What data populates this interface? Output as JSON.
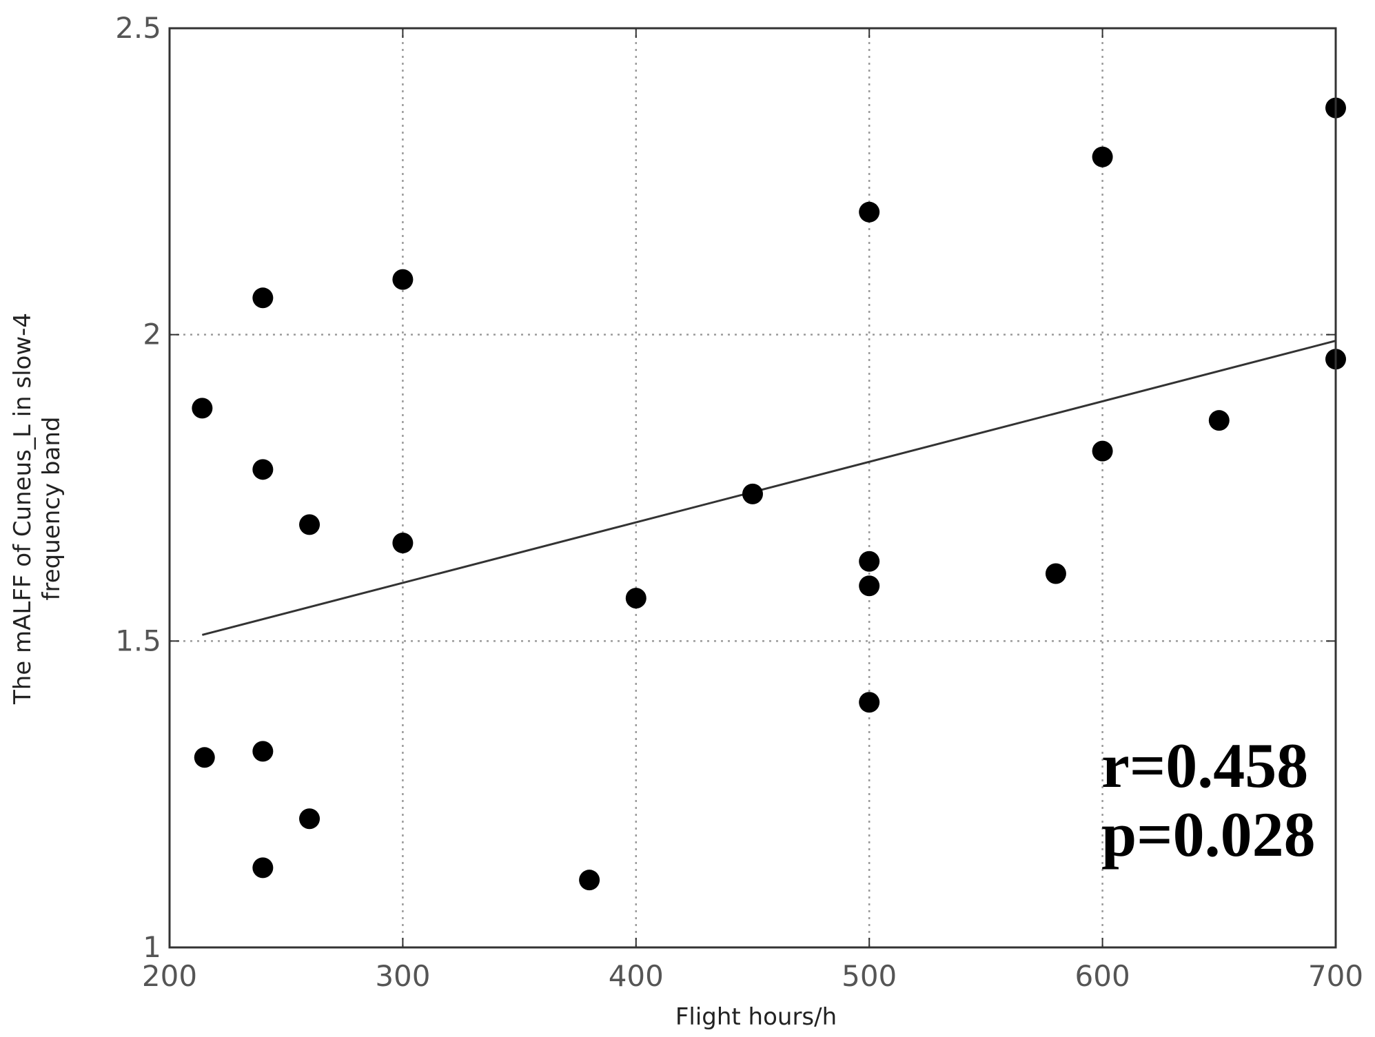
{
  "chart_data": {
    "type": "scatter",
    "title": "",
    "xlabel": "Flight hours/h",
    "ylabel": "The mALFF of Cuneus_L in slow-4 frequency band",
    "ylabel_lines": [
      "The mALFF of Cuneus_L in slow-4",
      "frequency band"
    ],
    "xlim": [
      200,
      700
    ],
    "ylim": [
      1,
      2.5
    ],
    "xticks": [
      200,
      300,
      400,
      500,
      600,
      700
    ],
    "xtick_labels": [
      "200",
      "300",
      "400",
      "500",
      "600",
      "700"
    ],
    "yticks": [
      1,
      1.5,
      2,
      2.5
    ],
    "ytick_labels": [
      "1",
      "1.5",
      "2",
      "2.5"
    ],
    "grid": true,
    "series": [
      {
        "points": [
          {
            "x": 214,
            "y": 1.88
          },
          {
            "x": 215,
            "y": 1.31
          },
          {
            "x": 240,
            "y": 2.06
          },
          {
            "x": 240,
            "y": 1.78
          },
          {
            "x": 240,
            "y": 1.32
          },
          {
            "x": 240,
            "y": 1.13
          },
          {
            "x": 260,
            "y": 1.69
          },
          {
            "x": 260,
            "y": 1.21
          },
          {
            "x": 300,
            "y": 2.09
          },
          {
            "x": 300,
            "y": 1.66
          },
          {
            "x": 380,
            "y": 1.11
          },
          {
            "x": 400,
            "y": 1.57
          },
          {
            "x": 450,
            "y": 1.74
          },
          {
            "x": 500,
            "y": 2.2
          },
          {
            "x": 500,
            "y": 1.63
          },
          {
            "x": 500,
            "y": 1.59
          },
          {
            "x": 500,
            "y": 1.4
          },
          {
            "x": 580,
            "y": 1.61
          },
          {
            "x": 600,
            "y": 2.29
          },
          {
            "x": 600,
            "y": 1.81
          },
          {
            "x": 650,
            "y": 1.86
          },
          {
            "x": 700,
            "y": 2.37
          },
          {
            "x": 700,
            "y": 1.96
          }
        ]
      }
    ],
    "fit_line": {
      "x": [
        214,
        700
      ],
      "y": [
        1.51,
        1.99
      ]
    },
    "annotations": [
      "r=0.458",
      "p=0.028"
    ],
    "colors": {
      "points": "#000000",
      "fit_line": "#333333",
      "grid": "#9a9a9a",
      "frame": "#333333"
    }
  }
}
